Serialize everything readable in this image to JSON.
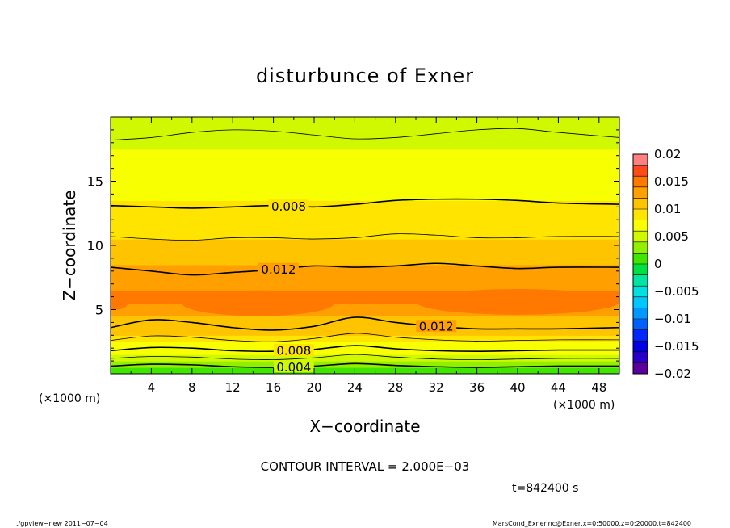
{
  "chart_data": {
    "type": "heatmap",
    "title": "disturbunce of Exner",
    "xlabel": "X−coordinate",
    "ylabel": "Z−coordinate",
    "x_unit": "(×1000 m)",
    "y_unit": "(×1000 m)",
    "xlim": [
      0,
      50
    ],
    "ylim": [
      0,
      20
    ],
    "x_ticks": [
      4,
      8,
      12,
      16,
      20,
      24,
      28,
      32,
      36,
      40,
      44,
      48
    ],
    "y_ticks": [
      5,
      10,
      15
    ],
    "colorbar": {
      "levels": [
        -0.02,
        -0.018,
        -0.016,
        -0.014,
        -0.012,
        -0.01,
        -0.008,
        -0.006,
        -0.004,
        -0.002,
        0,
        0.002,
        0.004,
        0.006,
        0.008,
        0.01,
        0.012,
        0.014,
        0.016,
        0.018,
        0.02
      ],
      "colors": [
        "#5b009c",
        "#2a00c8",
        "#0000e0",
        "#0028ff",
        "#0060ff",
        "#0098ff",
        "#00c8ff",
        "#00e0e0",
        "#00e6a0",
        "#00e040",
        "#40e600",
        "#90f000",
        "#d0f800",
        "#f8ff00",
        "#ffe400",
        "#ffc400",
        "#ffa000",
        "#ff7800",
        "#ff4a1a",
        "#ff8080"
      ],
      "tick_labels": [
        "0.02",
        "0.015",
        "0.01",
        "0.005",
        "0",
        "−0.005",
        "−0.01",
        "−0.015",
        "−0.02"
      ],
      "tick_values": [
        0.02,
        0.015,
        0.01,
        0.005,
        0,
        -0.005,
        -0.01,
        -0.015,
        -0.02
      ]
    },
    "band_levels": [
      {
        "z": 0.0,
        "value": 0.0015
      },
      {
        "z": 0.5,
        "value": 0.0028
      },
      {
        "z": 1.0,
        "value": 0.0045
      },
      {
        "z": 1.5,
        "value": 0.006
      },
      {
        "z": 2.0,
        "value": 0.0075
      },
      {
        "z": 2.5,
        "value": 0.009
      },
      {
        "z": 3.0,
        "value": 0.0105
      },
      {
        "z": 3.5,
        "value": 0.0118
      },
      {
        "z": 4.5,
        "value": 0.0135
      },
      {
        "z": 5.5,
        "value": 0.0142
      },
      {
        "z": 6.5,
        "value": 0.0138
      },
      {
        "z": 7.5,
        "value": 0.0128
      },
      {
        "z": 8.5,
        "value": 0.0118
      },
      {
        "z": 9.5,
        "value": 0.0108
      },
      {
        "z": 10.5,
        "value": 0.0098
      },
      {
        "z": 11.5,
        "value": 0.0092
      },
      {
        "z": 12.5,
        "value": 0.0086
      },
      {
        "z": 13.5,
        "value": 0.0078
      },
      {
        "z": 14.5,
        "value": 0.0072
      },
      {
        "z": 15.5,
        "value": 0.0066
      },
      {
        "z": 16.5,
        "value": 0.006
      },
      {
        "z": 17.5,
        "value": 0.0054
      },
      {
        "z": 18.5,
        "value": 0.0046
      },
      {
        "z": 19.5,
        "value": 0.004
      },
      {
        "z": 20.0,
        "value": 0.0036
      }
    ],
    "contours": [
      {
        "value": 0.004,
        "label": "0.004",
        "label_x": 18,
        "thick": true,
        "points": [
          [
            0,
            0.6
          ],
          [
            4,
            0.75
          ],
          [
            8,
            0.7
          ],
          [
            12,
            0.55
          ],
          [
            16,
            0.5
          ],
          [
            20,
            0.6
          ],
          [
            24,
            0.8
          ],
          [
            28,
            0.65
          ],
          [
            32,
            0.55
          ],
          [
            36,
            0.5
          ],
          [
            40,
            0.55
          ],
          [
            44,
            0.6
          ],
          [
            50,
            0.6
          ]
        ]
      },
      {
        "value": 0.006,
        "label": "",
        "thick": false,
        "points": [
          [
            0,
            1.2
          ],
          [
            4,
            1.35
          ],
          [
            8,
            1.3
          ],
          [
            12,
            1.15
          ],
          [
            16,
            1.1
          ],
          [
            20,
            1.25
          ],
          [
            24,
            1.5
          ],
          [
            28,
            1.3
          ],
          [
            32,
            1.15
          ],
          [
            36,
            1.1
          ],
          [
            40,
            1.15
          ],
          [
            44,
            1.2
          ],
          [
            50,
            1.2
          ]
        ]
      },
      {
        "value": 0.008,
        "label": "0.008",
        "label_x": 18,
        "thick": true,
        "points": [
          [
            0,
            1.8
          ],
          [
            4,
            2.05
          ],
          [
            8,
            2.0
          ],
          [
            12,
            1.8
          ],
          [
            16,
            1.75
          ],
          [
            20,
            1.9
          ],
          [
            24,
            2.2
          ],
          [
            28,
            1.95
          ],
          [
            32,
            1.8
          ],
          [
            36,
            1.75
          ],
          [
            40,
            1.8
          ],
          [
            44,
            1.85
          ],
          [
            50,
            1.85
          ]
        ]
      },
      {
        "value": 0.01,
        "label": "",
        "thick": false,
        "points": [
          [
            0,
            2.6
          ],
          [
            4,
            2.95
          ],
          [
            8,
            2.85
          ],
          [
            12,
            2.6
          ],
          [
            16,
            2.5
          ],
          [
            20,
            2.75
          ],
          [
            24,
            3.15
          ],
          [
            28,
            2.85
          ],
          [
            32,
            2.65
          ],
          [
            36,
            2.55
          ],
          [
            40,
            2.6
          ],
          [
            44,
            2.65
          ],
          [
            50,
            2.65
          ]
        ]
      },
      {
        "value": 0.012,
        "label": "0.012",
        "label_x": 32,
        "thick": true,
        "points": [
          [
            0,
            3.6
          ],
          [
            4,
            4.2
          ],
          [
            8,
            4.0
          ],
          [
            12,
            3.6
          ],
          [
            16,
            3.4
          ],
          [
            20,
            3.7
          ],
          [
            24,
            4.4
          ],
          [
            28,
            4.0
          ],
          [
            32,
            3.7
          ],
          [
            36,
            3.5
          ],
          [
            40,
            3.5
          ],
          [
            44,
            3.5
          ],
          [
            50,
            3.6
          ]
        ]
      },
      {
        "value": 0.012,
        "label": "0.012",
        "label_x": 16.5,
        "thick": true,
        "points": [
          [
            0,
            8.3
          ],
          [
            4,
            8.0
          ],
          [
            8,
            7.7
          ],
          [
            12,
            7.9
          ],
          [
            16,
            8.1
          ],
          [
            20,
            8.4
          ],
          [
            24,
            8.3
          ],
          [
            28,
            8.4
          ],
          [
            32,
            8.6
          ],
          [
            36,
            8.4
          ],
          [
            40,
            8.2
          ],
          [
            44,
            8.3
          ],
          [
            50,
            8.3
          ]
        ]
      },
      {
        "value": 0.01,
        "label": "",
        "thick": false,
        "points": [
          [
            0,
            10.7
          ],
          [
            4,
            10.5
          ],
          [
            8,
            10.4
          ],
          [
            12,
            10.6
          ],
          [
            16,
            10.6
          ],
          [
            20,
            10.5
          ],
          [
            24,
            10.6
          ],
          [
            28,
            10.9
          ],
          [
            32,
            10.8
          ],
          [
            36,
            10.6
          ],
          [
            40,
            10.6
          ],
          [
            44,
            10.7
          ],
          [
            50,
            10.7
          ]
        ]
      },
      {
        "value": 0.008,
        "label": "0.008",
        "label_x": 17.5,
        "thick": true,
        "points": [
          [
            0,
            13.1
          ],
          [
            4,
            13.0
          ],
          [
            8,
            12.9
          ],
          [
            12,
            13.0
          ],
          [
            16,
            13.1
          ],
          [
            20,
            13.0
          ],
          [
            24,
            13.2
          ],
          [
            28,
            13.5
          ],
          [
            32,
            13.6
          ],
          [
            36,
            13.6
          ],
          [
            40,
            13.5
          ],
          [
            44,
            13.3
          ],
          [
            50,
            13.2
          ]
        ]
      },
      {
        "value": 0.006,
        "label": "",
        "thick": false,
        "points": [
          [
            0,
            18.2
          ],
          [
            4,
            18.4
          ],
          [
            8,
            18.8
          ],
          [
            12,
            19.0
          ],
          [
            16,
            18.9
          ],
          [
            20,
            18.6
          ],
          [
            24,
            18.3
          ],
          [
            28,
            18.4
          ],
          [
            32,
            18.7
          ],
          [
            36,
            19.0
          ],
          [
            40,
            19.1
          ],
          [
            44,
            18.8
          ],
          [
            50,
            18.4
          ]
        ]
      }
    ],
    "hotspots": [
      {
        "x_center": 14.5,
        "z_center": 5.5,
        "x_halfwidth": 7.5,
        "z_halfheight": 1.0,
        "value": 0.0152
      },
      {
        "x_center": 40.0,
        "z_center": 5.6,
        "x_halfwidth": 10.0,
        "z_halfheight": 1.0,
        "value": 0.0152
      },
      {
        "x_center": 0.6,
        "z_center": 5.7,
        "x_halfwidth": 1.2,
        "z_halfheight": 0.7,
        "value": 0.0152
      }
    ]
  },
  "annotations": {
    "contour_interval": "CONTOUR INTERVAL = 2.000E−03",
    "time": "t=842400 s",
    "footer_left": "./gpview−new   2011−07−04",
    "footer_right": "MarsCond_Exner.nc@Exner,x=0:50000,z=0:20000,t=842400"
  }
}
